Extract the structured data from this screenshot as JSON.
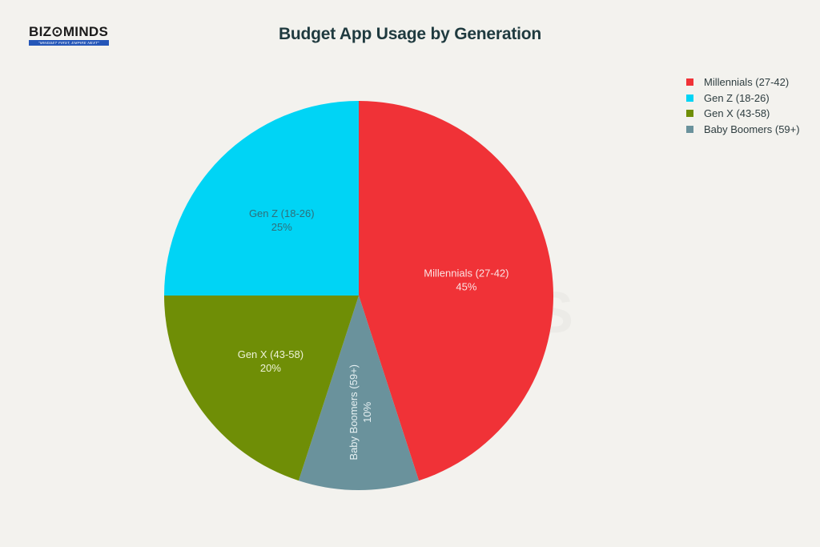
{
  "brand": {
    "name": "BIZ⊙MINDS",
    "tagline": "\"MINDSET FIRST, EMPIRE NEXT\""
  },
  "watermark": "BIZOMINDS",
  "chart_data": {
    "type": "pie",
    "title": "Budget App Usage by Generation",
    "start_angle": "top, clockwise",
    "legend_position": "right",
    "categories": [
      "Millennials (27-42)",
      "Gen Z (18-26)",
      "Gen X (43-58)",
      "Baby Boomers (59+)"
    ],
    "values": [
      45,
      25,
      20,
      10
    ],
    "unit": "%",
    "colors": [
      "#f03237",
      "#00d4f5",
      "#6f8e06",
      "#6a929c"
    ],
    "slices": [
      {
        "label": "Millennials (27-42)",
        "value": 45,
        "display": "45%",
        "color": "#f03237",
        "label_color": "#fbe3e3"
      },
      {
        "label": "Baby Boomers (59+)",
        "value": 10,
        "display": "10%",
        "color": "#6a929c",
        "label_color": "#e6f0f2"
      },
      {
        "label": "Gen X (43-58)",
        "value": 20,
        "display": "20%",
        "color": "#6f8e06",
        "label_color": "#eef3d8"
      },
      {
        "label": "Gen Z (18-26)",
        "value": 25,
        "display": "25%",
        "color": "#00d4f5",
        "label_color": "#2f6f7a"
      }
    ]
  },
  "legend": [
    {
      "label": "Millennials (27-42)",
      "color": "#f03237"
    },
    {
      "label": "Gen Z (18-26)",
      "color": "#00d4f5"
    },
    {
      "label": "Gen X (43-58)",
      "color": "#6f8e06"
    },
    {
      "label": "Baby Boomers (59+)",
      "color": "#6a929c"
    }
  ]
}
